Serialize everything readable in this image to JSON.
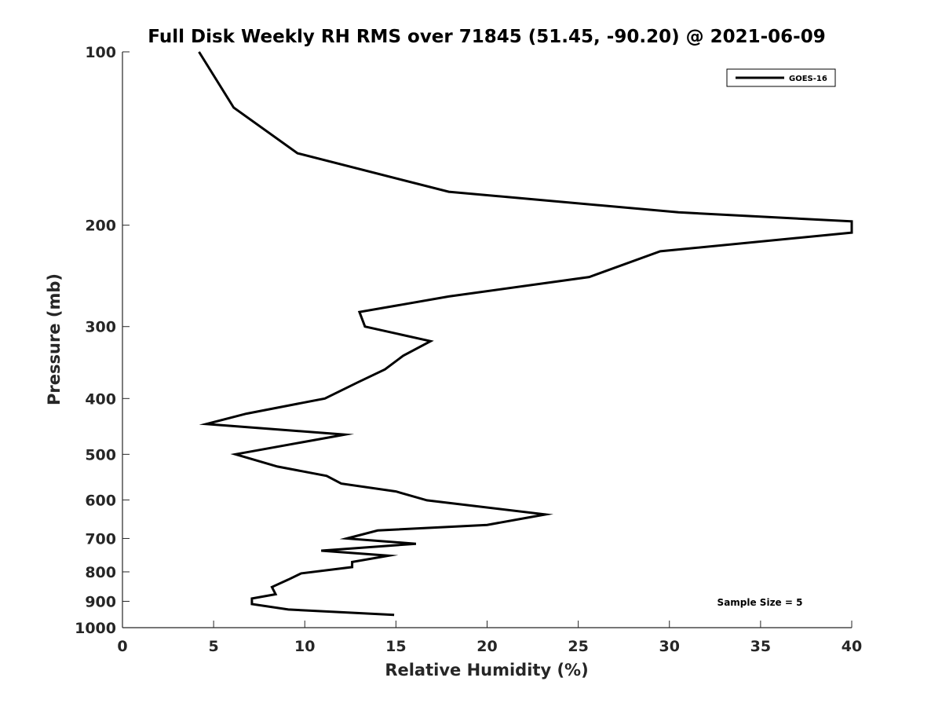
{
  "chart_data": {
    "type": "line",
    "title": "Full Disk Weekly RH RMS over 71845 (51.45, -90.20) @ 2021-06-09",
    "xlabel": "Relative Humidity (%)",
    "ylabel": "Pressure (mb)",
    "xlim": [
      0,
      40
    ],
    "ylim": [
      100,
      1000
    ],
    "y_scale": "log",
    "y_direction": "reversed",
    "grid": false,
    "legend_position": "top-right",
    "x_ticks": [
      0,
      5,
      10,
      15,
      20,
      25,
      30,
      35,
      40
    ],
    "y_ticks": [
      100,
      200,
      300,
      400,
      500,
      600,
      700,
      800,
      900,
      1000
    ],
    "annotation": "Sample Size = 5",
    "series": [
      {
        "name": "GOES-16",
        "color": "#000000",
        "points": [
          [
            4.2,
            100
          ],
          [
            6.1,
            125
          ],
          [
            9.6,
            150
          ],
          [
            17.9,
            175
          ],
          [
            30.5,
            190
          ],
          [
            40.0,
            197
          ],
          [
            40.0,
            206
          ],
          [
            29.5,
            222
          ],
          [
            25.6,
            246
          ],
          [
            17.9,
            266
          ],
          [
            13.0,
            283
          ],
          [
            13.3,
            300
          ],
          [
            16.9,
            318
          ],
          [
            15.4,
            337
          ],
          [
            14.4,
            356
          ],
          [
            12.9,
            375
          ],
          [
            11.1,
            400
          ],
          [
            6.8,
            425
          ],
          [
            4.6,
            443
          ],
          [
            12.2,
            462
          ],
          [
            6.2,
            500
          ],
          [
            8.5,
            525
          ],
          [
            11.2,
            545
          ],
          [
            12.0,
            562
          ],
          [
            15.0,
            580
          ],
          [
            16.7,
            601
          ],
          [
            23.2,
            636
          ],
          [
            20.0,
            663
          ],
          [
            14.0,
            678
          ],
          [
            12.3,
            700
          ],
          [
            16.1,
            715
          ],
          [
            10.9,
            735
          ],
          [
            14.6,
            750
          ],
          [
            12.6,
            769
          ],
          [
            12.6,
            785
          ],
          [
            9.8,
            805
          ],
          [
            9.1,
            825
          ],
          [
            8.2,
            850
          ],
          [
            8.4,
            875
          ],
          [
            7.1,
            890
          ],
          [
            7.1,
            910
          ],
          [
            9.1,
            930
          ],
          [
            14.9,
            950
          ]
        ]
      }
    ]
  }
}
